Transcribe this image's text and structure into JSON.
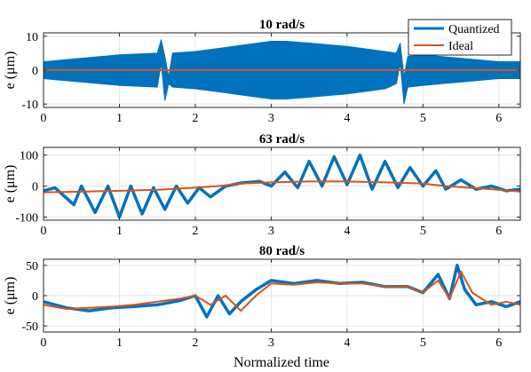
{
  "colors": {
    "quantized": "#0072BD",
    "ideal": "#D95319",
    "grid": "#e6e6e6",
    "axis": "#262626"
  },
  "legend": {
    "entries": [
      "Quantized",
      "Ideal"
    ],
    "placement": "top-right"
  },
  "xlabel": "Normalized time",
  "chart_data": [
    {
      "type": "line",
      "title": "10 rad/s",
      "ylabel": "e (μm)",
      "xlim": [
        0,
        6.283
      ],
      "ylim": [
        -11,
        11
      ],
      "xticks": [
        0,
        1,
        2,
        3,
        4,
        5,
        6
      ],
      "yticks": [
        -10,
        0,
        10
      ],
      "grid": true,
      "series": [
        {
          "name": "Quantized",
          "x": [
            0,
            0.5,
            1.0,
            1.5,
            1.55,
            1.6,
            1.65,
            1.7,
            2.0,
            2.5,
            3.0,
            3.2,
            3.5,
            4.0,
            4.5,
            4.65,
            4.7,
            4.75,
            4.8,
            5.0,
            5.5,
            6.0,
            6.283
          ],
          "y_upper": [
            2.5,
            3.5,
            4.5,
            5,
            9,
            4,
            -2,
            5,
            5.5,
            7,
            8.5,
            8.5,
            8,
            7,
            5.5,
            5,
            8,
            -2,
            4,
            4.5,
            3.5,
            2.5,
            2.5
          ],
          "y_lower": [
            -2.5,
            -3.5,
            -4.5,
            -5,
            2,
            -9,
            -4,
            -5,
            -5.5,
            -7,
            -8.5,
            -8.5,
            -8,
            -7,
            -5.5,
            -4,
            2,
            -10,
            -5,
            -4.5,
            -3.5,
            -2.5,
            -2.5
          ]
        },
        {
          "name": "Ideal",
          "x": [
            0,
            6.283
          ],
          "y": [
            0,
            0
          ]
        }
      ]
    },
    {
      "type": "line",
      "title": "63 rad/s",
      "ylabel": "e (μm)",
      "xlim": [
        0,
        6.283
      ],
      "ylim": [
        -110,
        125
      ],
      "xticks": [
        0,
        1,
        2,
        3,
        4,
        5,
        6
      ],
      "yticks": [
        -100,
        0,
        100
      ],
      "grid": true,
      "series": [
        {
          "name": "Quantized",
          "x": [
            0,
            0.15,
            0.4,
            0.5,
            0.68,
            0.85,
            1.0,
            1.15,
            1.3,
            1.45,
            1.6,
            1.75,
            1.9,
            2.05,
            2.2,
            2.4,
            2.6,
            2.85,
            3.0,
            3.18,
            3.35,
            3.5,
            3.67,
            3.83,
            4.0,
            4.17,
            4.33,
            4.5,
            4.67,
            4.83,
            5.0,
            5.17,
            5.3,
            5.5,
            5.7,
            5.9,
            6.1,
            6.283
          ],
          "y": [
            -15,
            -5,
            -60,
            0,
            -85,
            0,
            -100,
            0,
            -90,
            -5,
            -75,
            0,
            -55,
            -5,
            -35,
            0,
            10,
            15,
            0,
            45,
            -5,
            80,
            0,
            95,
            5,
            100,
            -10,
            80,
            -5,
            60,
            0,
            50,
            -10,
            20,
            -10,
            0,
            -15,
            -10
          ]
        },
        {
          "name": "Ideal",
          "x": [
            0,
            0.5,
            1.0,
            1.5,
            2.0,
            2.3,
            2.6,
            3.0,
            3.5,
            4.0,
            4.5,
            5.0,
            5.3,
            5.6,
            6.0,
            6.283
          ],
          "y": [
            -20,
            -18,
            -15,
            -12,
            -5,
            0,
            8,
            12,
            15,
            15,
            12,
            8,
            0,
            -5,
            -12,
            -18
          ]
        }
      ]
    },
    {
      "type": "line",
      "title": "80 rad/s",
      "ylabel": "e (μm)",
      "xlim": [
        0,
        6.283
      ],
      "ylim": [
        -60,
        60
      ],
      "xticks": [
        0,
        1,
        2,
        3,
        4,
        5,
        6
      ],
      "yticks": [
        -50,
        0,
        50
      ],
      "grid": true,
      "series": [
        {
          "name": "Quantized",
          "x": [
            0,
            0.3,
            0.6,
            0.9,
            1.2,
            1.5,
            1.8,
            2.0,
            2.15,
            2.3,
            2.45,
            2.6,
            2.8,
            3.0,
            3.3,
            3.6,
            3.9,
            4.2,
            4.5,
            4.8,
            5.0,
            5.2,
            5.35,
            5.45,
            5.55,
            5.7,
            5.9,
            6.1,
            6.283
          ],
          "y": [
            -10,
            -20,
            -25,
            -20,
            -18,
            -15,
            -8,
            0,
            -35,
            0,
            -30,
            -10,
            10,
            25,
            20,
            25,
            20,
            22,
            15,
            15,
            5,
            35,
            -5,
            50,
            10,
            -15,
            -10,
            -18,
            -10
          ]
        },
        {
          "name": "Ideal",
          "x": [
            0,
            0.3,
            0.6,
            0.9,
            1.2,
            1.5,
            1.8,
            2.0,
            2.2,
            2.4,
            2.6,
            2.8,
            3.0,
            3.3,
            3.6,
            3.9,
            4.2,
            4.5,
            4.8,
            5.0,
            5.2,
            5.35,
            5.5,
            5.65,
            5.9,
            6.1,
            6.283
          ],
          "y": [
            -15,
            -22,
            -20,
            -18,
            -15,
            -10,
            -5,
            0,
            -15,
            0,
            -25,
            0,
            20,
            18,
            22,
            20,
            20,
            15,
            15,
            5,
            25,
            -5,
            40,
            5,
            -15,
            -10,
            -15
          ]
        }
      ]
    }
  ]
}
